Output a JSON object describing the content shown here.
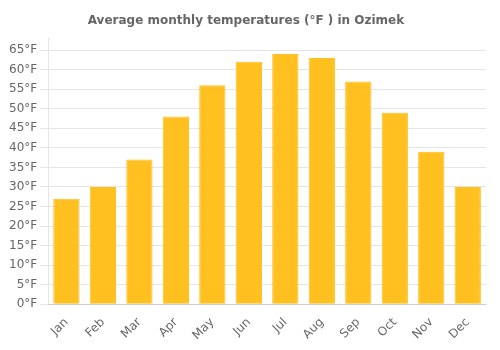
{
  "chart_data": {
    "type": "bar",
    "title": "Average monthly temperatures (°F ) in Ozimek",
    "categories": [
      "Jan",
      "Feb",
      "Mar",
      "Apr",
      "May",
      "Jun",
      "Jul",
      "Aug",
      "Sep",
      "Oct",
      "Nov",
      "Dec"
    ],
    "values": [
      27,
      30,
      37,
      48,
      56,
      62,
      64,
      63,
      57,
      49,
      39,
      30
    ],
    "color": "#FFC020",
    "ylim": [
      0,
      68
    ],
    "yticks": [
      {
        "value": 0,
        "label": "0°F"
      },
      {
        "value": 5,
        "label": "5°F"
      },
      {
        "value": 10,
        "label": "10°F"
      },
      {
        "value": 15,
        "label": "15°F"
      },
      {
        "value": 20,
        "label": "20°F"
      },
      {
        "value": 25,
        "label": "25°F"
      },
      {
        "value": 30,
        "label": "30°F"
      },
      {
        "value": 35,
        "label": "35°F"
      },
      {
        "value": 40,
        "label": "40°F"
      },
      {
        "value": 45,
        "label": "45°F"
      },
      {
        "value": 50,
        "label": "50°F"
      },
      {
        "value": 55,
        "label": "55°F"
      },
      {
        "value": 60,
        "label": "60°F"
      },
      {
        "value": 65,
        "label": "65°F"
      }
    ],
    "grid": true
  }
}
